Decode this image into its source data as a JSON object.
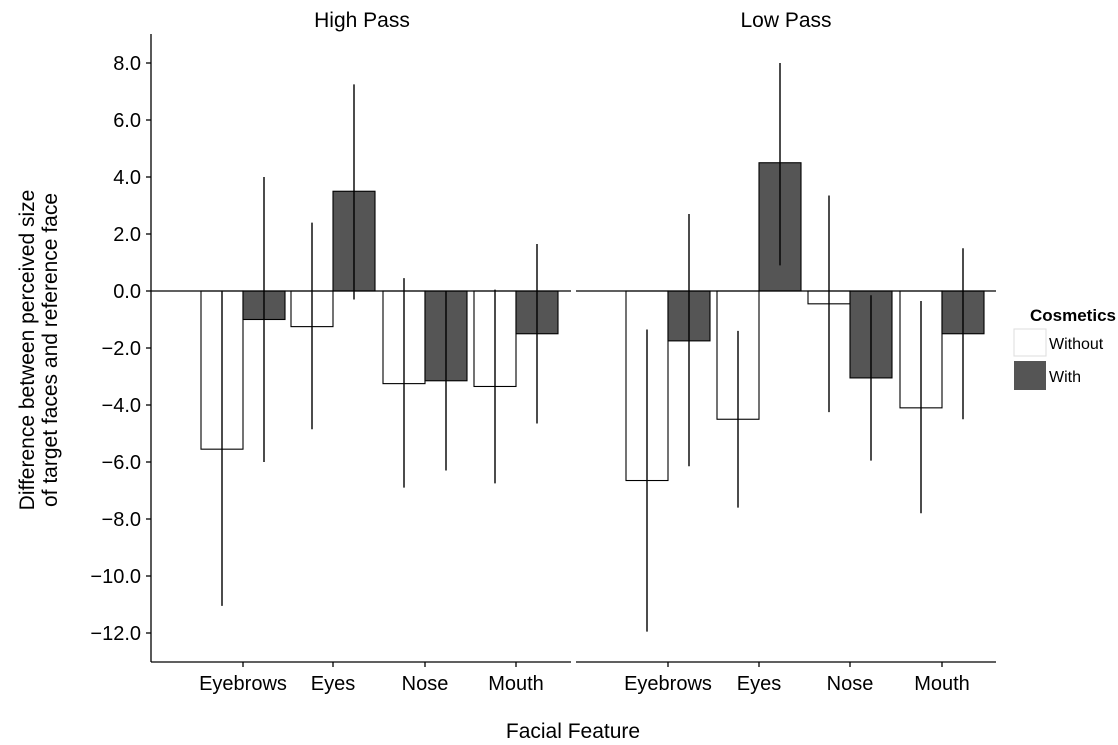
{
  "chart_data": {
    "type": "bar",
    "facets": [
      "High Pass",
      "Low Pass"
    ],
    "categories": [
      "Eyebrows",
      "Eyes",
      "Nose",
      "Mouth"
    ],
    "xlabel": "Facial Feature",
    "ylabel_lines": [
      "Difference between perceived size",
      "of target faces and reference face"
    ],
    "ylim": [
      -13,
      9
    ],
    "yticks": [
      8,
      6,
      4,
      2,
      0,
      -2,
      -4,
      -6,
      -8,
      -10,
      -12
    ],
    "ytick_labels": [
      "8.0",
      "6.0",
      "4.0",
      "2.0",
      "0.0",
      "−2.0",
      "−4.0",
      "−6.0",
      "−8.0",
      "−10.0",
      "−12.0"
    ],
    "legend": {
      "title": "Cosmetics",
      "placement": "right",
      "entries": [
        "Without",
        "With"
      ]
    },
    "series_colors": [
      "#ffffff",
      "#555555"
    ],
    "panels": [
      {
        "facet": "High Pass",
        "series": [
          {
            "name": "Without",
            "values": [
              -5.55,
              -1.25,
              -3.25,
              -3.35
            ],
            "err_low": [
              -11.05,
              -4.85,
              -6.9,
              -6.75
            ],
            "err_high": [
              0,
              2.4,
              0.45,
              0.05
            ]
          },
          {
            "name": "With",
            "values": [
              -1.0,
              3.5,
              -3.15,
              -1.5
            ],
            "err_low": [
              -6.0,
              -0.3,
              -6.3,
              -4.65
            ],
            "err_high": [
              4.0,
              7.25,
              0,
              1.65
            ]
          }
        ]
      },
      {
        "facet": "Low Pass",
        "series": [
          {
            "name": "Without",
            "values": [
              -6.65,
              -4.5,
              -0.45,
              -4.1
            ],
            "err_low": [
              -11.95,
              -7.6,
              -4.25,
              -7.8
            ],
            "err_high": [
              -1.35,
              -1.4,
              3.35,
              -0.35
            ]
          },
          {
            "name": "With",
            "values": [
              -1.75,
              4.5,
              -3.05,
              -1.5
            ],
            "err_low": [
              -6.15,
              0.9,
              -5.95,
              -4.5
            ],
            "err_high": [
              2.7,
              8.0,
              -0.15,
              1.5
            ]
          }
        ]
      }
    ]
  }
}
